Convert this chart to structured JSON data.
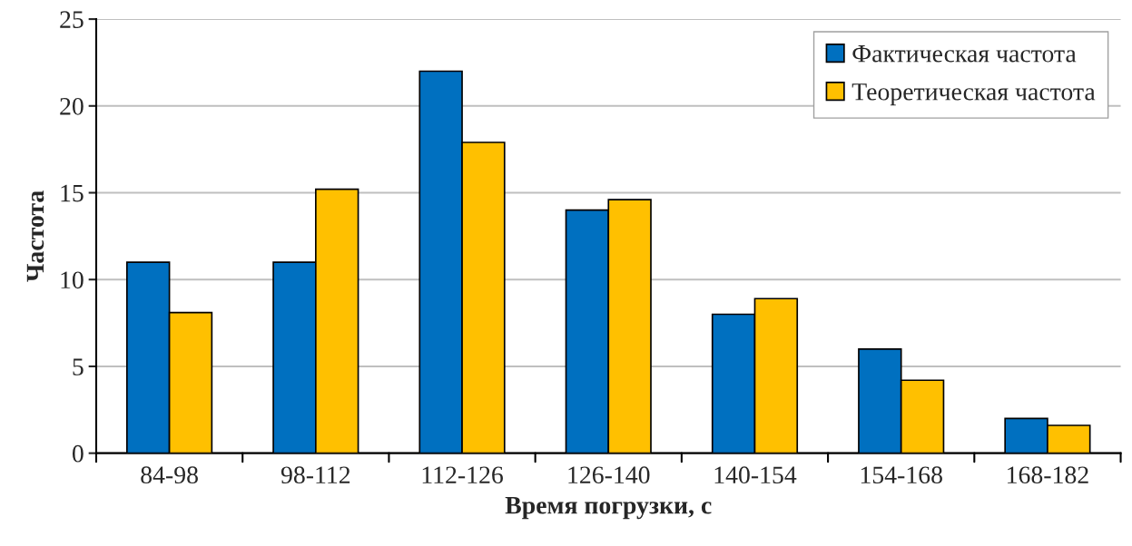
{
  "chart_data": {
    "type": "bar",
    "xlabel": "Время погрузки, с",
    "ylabel": "Частота",
    "categories": [
      "84-98",
      "98-112",
      "112-126",
      "126-140",
      "140-154",
      "154-168",
      "168-182"
    ],
    "series": [
      {
        "name": "Фактическая частота",
        "color": "#0070c0",
        "values": [
          11,
          11,
          22,
          14,
          8,
          6,
          2
        ]
      },
      {
        "name": "Теоретическая частота",
        "color": "#ffc000",
        "values": [
          8.1,
          15.2,
          17.9,
          14.6,
          8.9,
          4.2,
          1.6
        ]
      }
    ],
    "ylim": [
      0,
      25
    ],
    "yticks": [
      0,
      5,
      10,
      15,
      20,
      25
    ],
    "grid": "y",
    "legend": "top right"
  }
}
